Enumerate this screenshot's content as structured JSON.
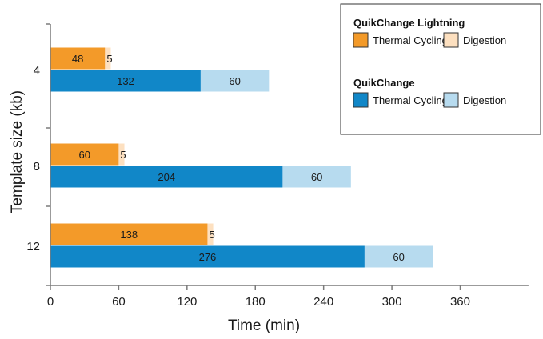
{
  "chart_data": {
    "type": "bar",
    "orientation": "horizontal",
    "stacked": true,
    "xlabel": "Time (min)",
    "ylabel": "Template size (kb)",
    "xlim": [
      0,
      420
    ],
    "xticks": [
      0,
      60,
      120,
      180,
      240,
      300,
      360
    ],
    "categories": [
      "4",
      "8",
      "12"
    ],
    "grid": false,
    "legend_position": "top-right",
    "groups": [
      {
        "name": "QuikChange Lightning",
        "segments": [
          {
            "name": "Thermal Cycling",
            "color": "#f39a29",
            "values": [
              48,
              60,
              138
            ]
          },
          {
            "name": "Digestion",
            "color": "#fde0c0",
            "values": [
              5,
              5,
              5
            ]
          }
        ]
      },
      {
        "name": "QuikChange",
        "segments": [
          {
            "name": "Thermal Cycling",
            "color": "#1187c8",
            "values": [
              132,
              204,
              276
            ]
          },
          {
            "name": "Digestion",
            "color": "#b7dbef",
            "values": [
              60,
              60,
              60
            ]
          }
        ]
      }
    ]
  }
}
